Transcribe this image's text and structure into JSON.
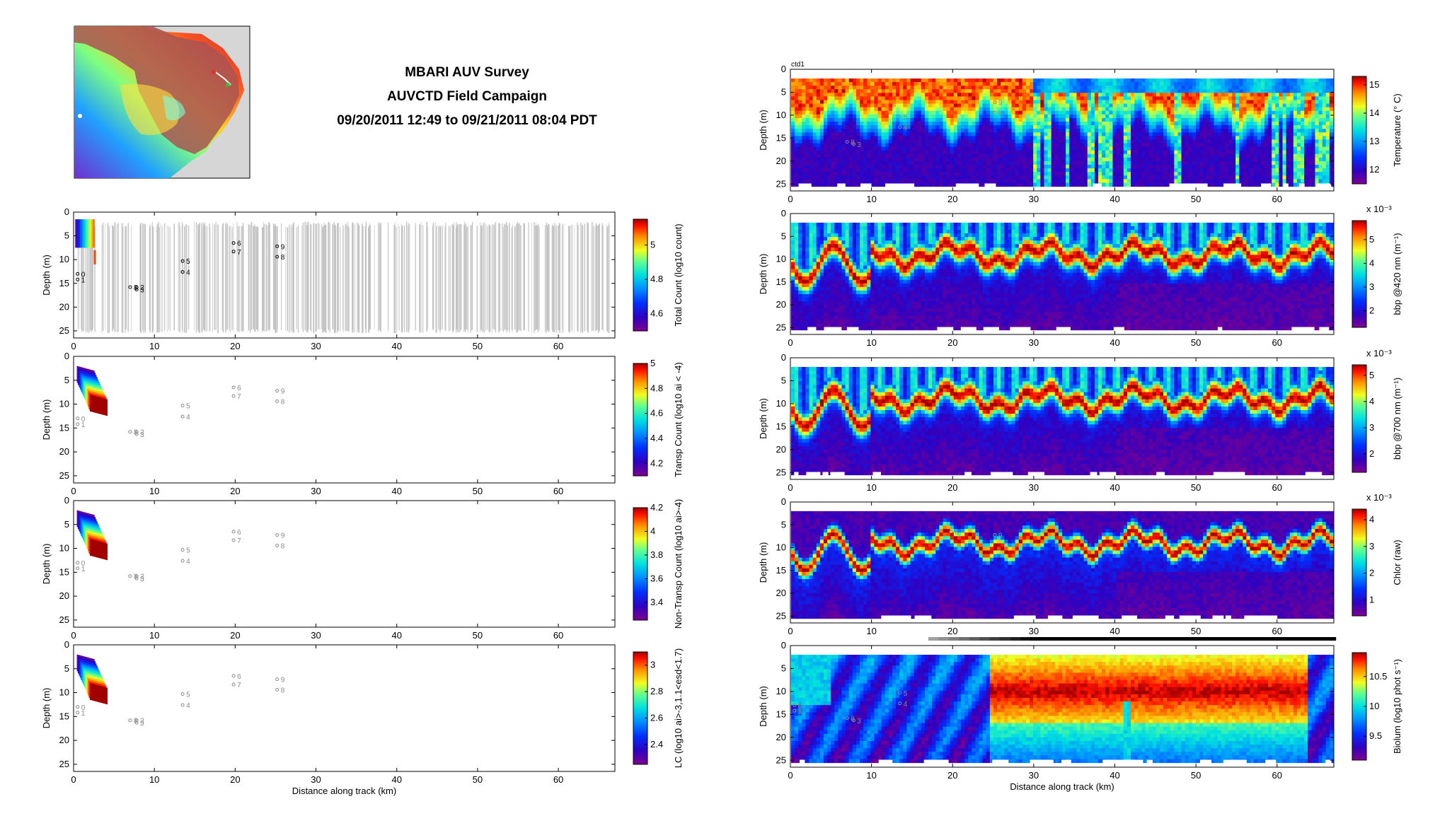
{
  "header": {
    "title_line1": "MBARI AUV Survey",
    "title_line2": "AUVCTD Field Campaign",
    "title_line3": "09/20/2011 12:49 to 09/21/2011 08:04 PDT"
  },
  "map": {
    "description_icon": "bathymetry-map-icon"
  },
  "colors": {
    "axis": "#000000",
    "grey_tracks": "#c8c8c8",
    "marker_dark": "#000000",
    "marker_light": "#8a8a8a"
  },
  "chart_data": [
    {
      "id": "left1",
      "type": "heatmap",
      "title": "",
      "xlabel": "",
      "ylabel": "Depth (m)",
      "xlim": [
        0,
        67
      ],
      "ylim": [
        26.5,
        0
      ],
      "xticks": [
        "0",
        "10",
        "20",
        "30",
        "40",
        "50",
        "60"
      ],
      "yticks": [
        "0",
        "5",
        "10",
        "15",
        "20",
        "25"
      ],
      "colorbar": {
        "label": "Total Count (log10 count)",
        "ticks": [
          "5",
          "4.8",
          "4.6"
        ],
        "tick_values": [
          5,
          4.8,
          4.6
        ],
        "range": [
          4.5,
          5.15
        ],
        "exponent": ""
      },
      "markers_style": "dark",
      "markers": [
        {
          "label": "0",
          "x": 0.5,
          "y": 13.0
        },
        {
          "label": "1",
          "x": 0.5,
          "y": 14.2
        },
        {
          "label": "8",
          "x": 7.0,
          "y": 15.8
        },
        {
          "label": "2",
          "x": 7.8,
          "y": 15.8
        },
        {
          "label": "3",
          "x": 7.8,
          "y": 16.3
        },
        {
          "label": "5",
          "x": 13.5,
          "y": 10.3
        },
        {
          "label": "4",
          "x": 13.5,
          "y": 12.6
        },
        {
          "label": "6",
          "x": 19.8,
          "y": 6.5
        },
        {
          "label": "7",
          "x": 19.8,
          "y": 8.3
        },
        {
          "label": "9",
          "x": 25.2,
          "y": 7.2
        },
        {
          "label": "8",
          "x": 25.2,
          "y": 9.4
        }
      ]
    },
    {
      "id": "left2",
      "type": "heatmap",
      "title": "",
      "xlabel": "",
      "ylabel": "Depth (m)",
      "xlim": [
        0,
        67
      ],
      "ylim": [
        26.5,
        0
      ],
      "xticks": [
        "0",
        "10",
        "20",
        "30",
        "40",
        "50",
        "60"
      ],
      "yticks": [
        "0",
        "5",
        "10",
        "15",
        "20",
        "25"
      ],
      "colorbar": {
        "label": "Transp Count (log10 ai < -4)",
        "ticks": [
          "5",
          "4.8",
          "4.6",
          "4.4",
          "4.2"
        ],
        "tick_values": [
          5,
          4.8,
          4.6,
          4.4,
          4.2
        ],
        "range": [
          4.1,
          5.0
        ],
        "exponent": ""
      },
      "markers_style": "light",
      "markers": [
        {
          "label": "0",
          "x": 0.5,
          "y": 13.0
        },
        {
          "label": "1",
          "x": 0.5,
          "y": 14.2
        },
        {
          "label": "8",
          "x": 7.0,
          "y": 15.8
        },
        {
          "label": "2",
          "x": 7.8,
          "y": 15.8
        },
        {
          "label": "3",
          "x": 7.8,
          "y": 16.3
        },
        {
          "label": "5",
          "x": 13.5,
          "y": 10.3
        },
        {
          "label": "4",
          "x": 13.5,
          "y": 12.6
        },
        {
          "label": "6",
          "x": 19.8,
          "y": 6.5
        },
        {
          "label": "7",
          "x": 19.8,
          "y": 8.3
        },
        {
          "label": "9",
          "x": 25.2,
          "y": 7.2
        },
        {
          "label": "8",
          "x": 25.2,
          "y": 9.4
        }
      ]
    },
    {
      "id": "left3",
      "type": "heatmap",
      "title": "",
      "xlabel": "",
      "ylabel": "Depth (m)",
      "xlim": [
        0,
        67
      ],
      "ylim": [
        26.5,
        0
      ],
      "xticks": [
        "0",
        "10",
        "20",
        "30",
        "40",
        "50",
        "60"
      ],
      "yticks": [
        "0",
        "5",
        "10",
        "15",
        "20",
        "25"
      ],
      "colorbar": {
        "label": "Non-Transp Count (log10 ai>-4)",
        "ticks": [
          "4.2",
          "4",
          "3.8",
          "3.6",
          "3.4"
        ],
        "tick_values": [
          4.2,
          4.0,
          3.8,
          3.6,
          3.4
        ],
        "range": [
          3.25,
          4.2
        ],
        "exponent": ""
      },
      "markers_style": "light",
      "markers": [
        {
          "label": "0",
          "x": 0.5,
          "y": 13.0
        },
        {
          "label": "1",
          "x": 0.5,
          "y": 14.2
        },
        {
          "label": "8",
          "x": 7.0,
          "y": 15.8
        },
        {
          "label": "2",
          "x": 7.8,
          "y": 15.8
        },
        {
          "label": "3",
          "x": 7.8,
          "y": 16.3
        },
        {
          "label": "5",
          "x": 13.5,
          "y": 10.3
        },
        {
          "label": "4",
          "x": 13.5,
          "y": 12.6
        },
        {
          "label": "6",
          "x": 19.8,
          "y": 6.5
        },
        {
          "label": "7",
          "x": 19.8,
          "y": 8.3
        },
        {
          "label": "9",
          "x": 25.2,
          "y": 7.2
        },
        {
          "label": "8",
          "x": 25.2,
          "y": 9.4
        }
      ]
    },
    {
      "id": "left4",
      "type": "heatmap",
      "title": "",
      "xlabel": "Distance along track (km)",
      "ylabel": "Depth (m)",
      "xlim": [
        0,
        67
      ],
      "ylim": [
        26.5,
        0
      ],
      "xticks": [
        "0",
        "10",
        "20",
        "30",
        "40",
        "50",
        "60"
      ],
      "yticks": [
        "0",
        "5",
        "10",
        "15",
        "20",
        "25"
      ],
      "colorbar": {
        "label": "LC (log10 ai>-3,1.1<esd<1.7)",
        "ticks": [
          "3",
          "2.8",
          "2.6",
          "2.4"
        ],
        "tick_values": [
          3.0,
          2.8,
          2.6,
          2.4
        ],
        "range": [
          2.25,
          3.1
        ],
        "exponent": ""
      },
      "markers_style": "light",
      "markers": [
        {
          "label": "0",
          "x": 0.5,
          "y": 13.0
        },
        {
          "label": "1",
          "x": 0.5,
          "y": 14.2
        },
        {
          "label": "8",
          "x": 7.0,
          "y": 15.8
        },
        {
          "label": "2",
          "x": 7.8,
          "y": 15.8
        },
        {
          "label": "3",
          "x": 7.8,
          "y": 16.3
        },
        {
          "label": "5",
          "x": 13.5,
          "y": 10.3
        },
        {
          "label": "4",
          "x": 13.5,
          "y": 12.6
        },
        {
          "label": "6",
          "x": 19.8,
          "y": 6.5
        },
        {
          "label": "7",
          "x": 19.8,
          "y": 8.3
        },
        {
          "label": "9",
          "x": 25.2,
          "y": 7.2
        },
        {
          "label": "8",
          "x": 25.2,
          "y": 9.4
        }
      ]
    },
    {
      "id": "right1",
      "type": "heatmap",
      "title": "ctd1",
      "xlabel": "",
      "ylabel": "Depth (m)",
      "xlim": [
        0,
        67
      ],
      "ylim": [
        26.5,
        0
      ],
      "xticks": [
        "0",
        "10",
        "20",
        "30",
        "40",
        "50",
        "60"
      ],
      "yticks": [
        "0",
        "5",
        "10",
        "15",
        "20",
        "25"
      ],
      "colorbar": {
        "label": "Temperature (° C)",
        "ticks": [
          "15",
          "14",
          "13",
          "12"
        ],
        "tick_values": [
          15,
          14,
          13,
          12
        ],
        "range": [
          11.5,
          15.3
        ],
        "exponent": ""
      },
      "markers_style": "light",
      "markers": [
        {
          "label": "5",
          "x": 13.5,
          "y": 10.3
        },
        {
          "label": "4",
          "x": 13.5,
          "y": 12.6
        },
        {
          "label": "8",
          "x": 7.0,
          "y": 15.8
        },
        {
          "label": "3",
          "x": 7.8,
          "y": 16.3
        },
        {
          "label": "9",
          "x": 25.2,
          "y": 7.2
        },
        {
          "label": "8",
          "x": 25.2,
          "y": 9.4
        }
      ]
    },
    {
      "id": "right2",
      "type": "heatmap",
      "title": "",
      "xlabel": "",
      "ylabel": "Depth (m)",
      "xlim": [
        0,
        67
      ],
      "ylim": [
        26.5,
        0
      ],
      "xticks": [
        "0",
        "10",
        "20",
        "30",
        "40",
        "50",
        "60"
      ],
      "yticks": [
        "0",
        "5",
        "10",
        "15",
        "20",
        "25"
      ],
      "colorbar": {
        "label": "bbp @420 nm (m⁻¹)",
        "ticks": [
          "5",
          "4",
          "3",
          "2"
        ],
        "tick_values": [
          5,
          4,
          3,
          2
        ],
        "range": [
          1.3,
          5.8
        ],
        "exponent": "x 10⁻³"
      },
      "markers_style": "light",
      "markers": []
    },
    {
      "id": "right3",
      "type": "heatmap",
      "title": "",
      "xlabel": "",
      "ylabel": "Depth (m)",
      "xlim": [
        0,
        67
      ],
      "ylim": [
        26.5,
        0
      ],
      "xticks": [
        "0",
        "10",
        "20",
        "30",
        "40",
        "50",
        "60"
      ],
      "yticks": [
        "0",
        "5",
        "10",
        "15",
        "20",
        "25"
      ],
      "colorbar": {
        "label": "bbp @700 nm (m⁻¹)",
        "ticks": [
          "5",
          "4",
          "3",
          "2"
        ],
        "tick_values": [
          5,
          4,
          3,
          2
        ],
        "range": [
          1.3,
          5.4
        ],
        "exponent": "x 10⁻³"
      },
      "markers_style": "light",
      "markers": []
    },
    {
      "id": "right4",
      "type": "heatmap",
      "title": "",
      "xlabel": "",
      "ylabel": "Depth (m)",
      "xlim": [
        0,
        67
      ],
      "ylim": [
        26.5,
        0
      ],
      "xticks": [
        "0",
        "10",
        "20",
        "30",
        "40",
        "50",
        "60"
      ],
      "yticks": [
        "0",
        "5",
        "10",
        "15",
        "20",
        "25"
      ],
      "colorbar": {
        "label": "Chlor (raw)",
        "ticks": [
          "4",
          "3",
          "2",
          "1"
        ],
        "tick_values": [
          4,
          3,
          2,
          1
        ],
        "range": [
          0.4,
          4.4
        ],
        "exponent": "x 10⁻³"
      },
      "markers_style": "light",
      "markers": [
        {
          "label": "6",
          "x": 19.8,
          "y": 6.5
        },
        {
          "label": "9",
          "x": 25.2,
          "y": 7.2
        }
      ]
    },
    {
      "id": "right5",
      "type": "heatmap",
      "title": "",
      "xlabel": "Distance along track (km)",
      "ylabel": "Depth (m)",
      "xlim": [
        0,
        67
      ],
      "ylim": [
        26.5,
        0
      ],
      "xticks": [
        "0",
        "10",
        "20",
        "30",
        "40",
        "50",
        "60"
      ],
      "yticks": [
        "0",
        "5",
        "10",
        "15",
        "20",
        "25"
      ],
      "colorbar": {
        "label": "Biolum (log10 phot s⁻¹)",
        "ticks": [
          "10.5",
          "10",
          "9.5"
        ],
        "tick_values": [
          10.5,
          10,
          9.5
        ],
        "range": [
          9.1,
          10.9
        ],
        "exponent": ""
      },
      "markers_style": "light",
      "markers": [
        {
          "label": "0",
          "x": 0.5,
          "y": 13.0
        },
        {
          "label": "1",
          "x": 0.5,
          "y": 14.2
        },
        {
          "label": "5",
          "x": 13.5,
          "y": 10.3
        },
        {
          "label": "4",
          "x": 13.5,
          "y": 12.6
        },
        {
          "label": "8",
          "x": 7.0,
          "y": 15.8
        },
        {
          "label": "3",
          "x": 7.8,
          "y": 16.3
        }
      ]
    }
  ]
}
